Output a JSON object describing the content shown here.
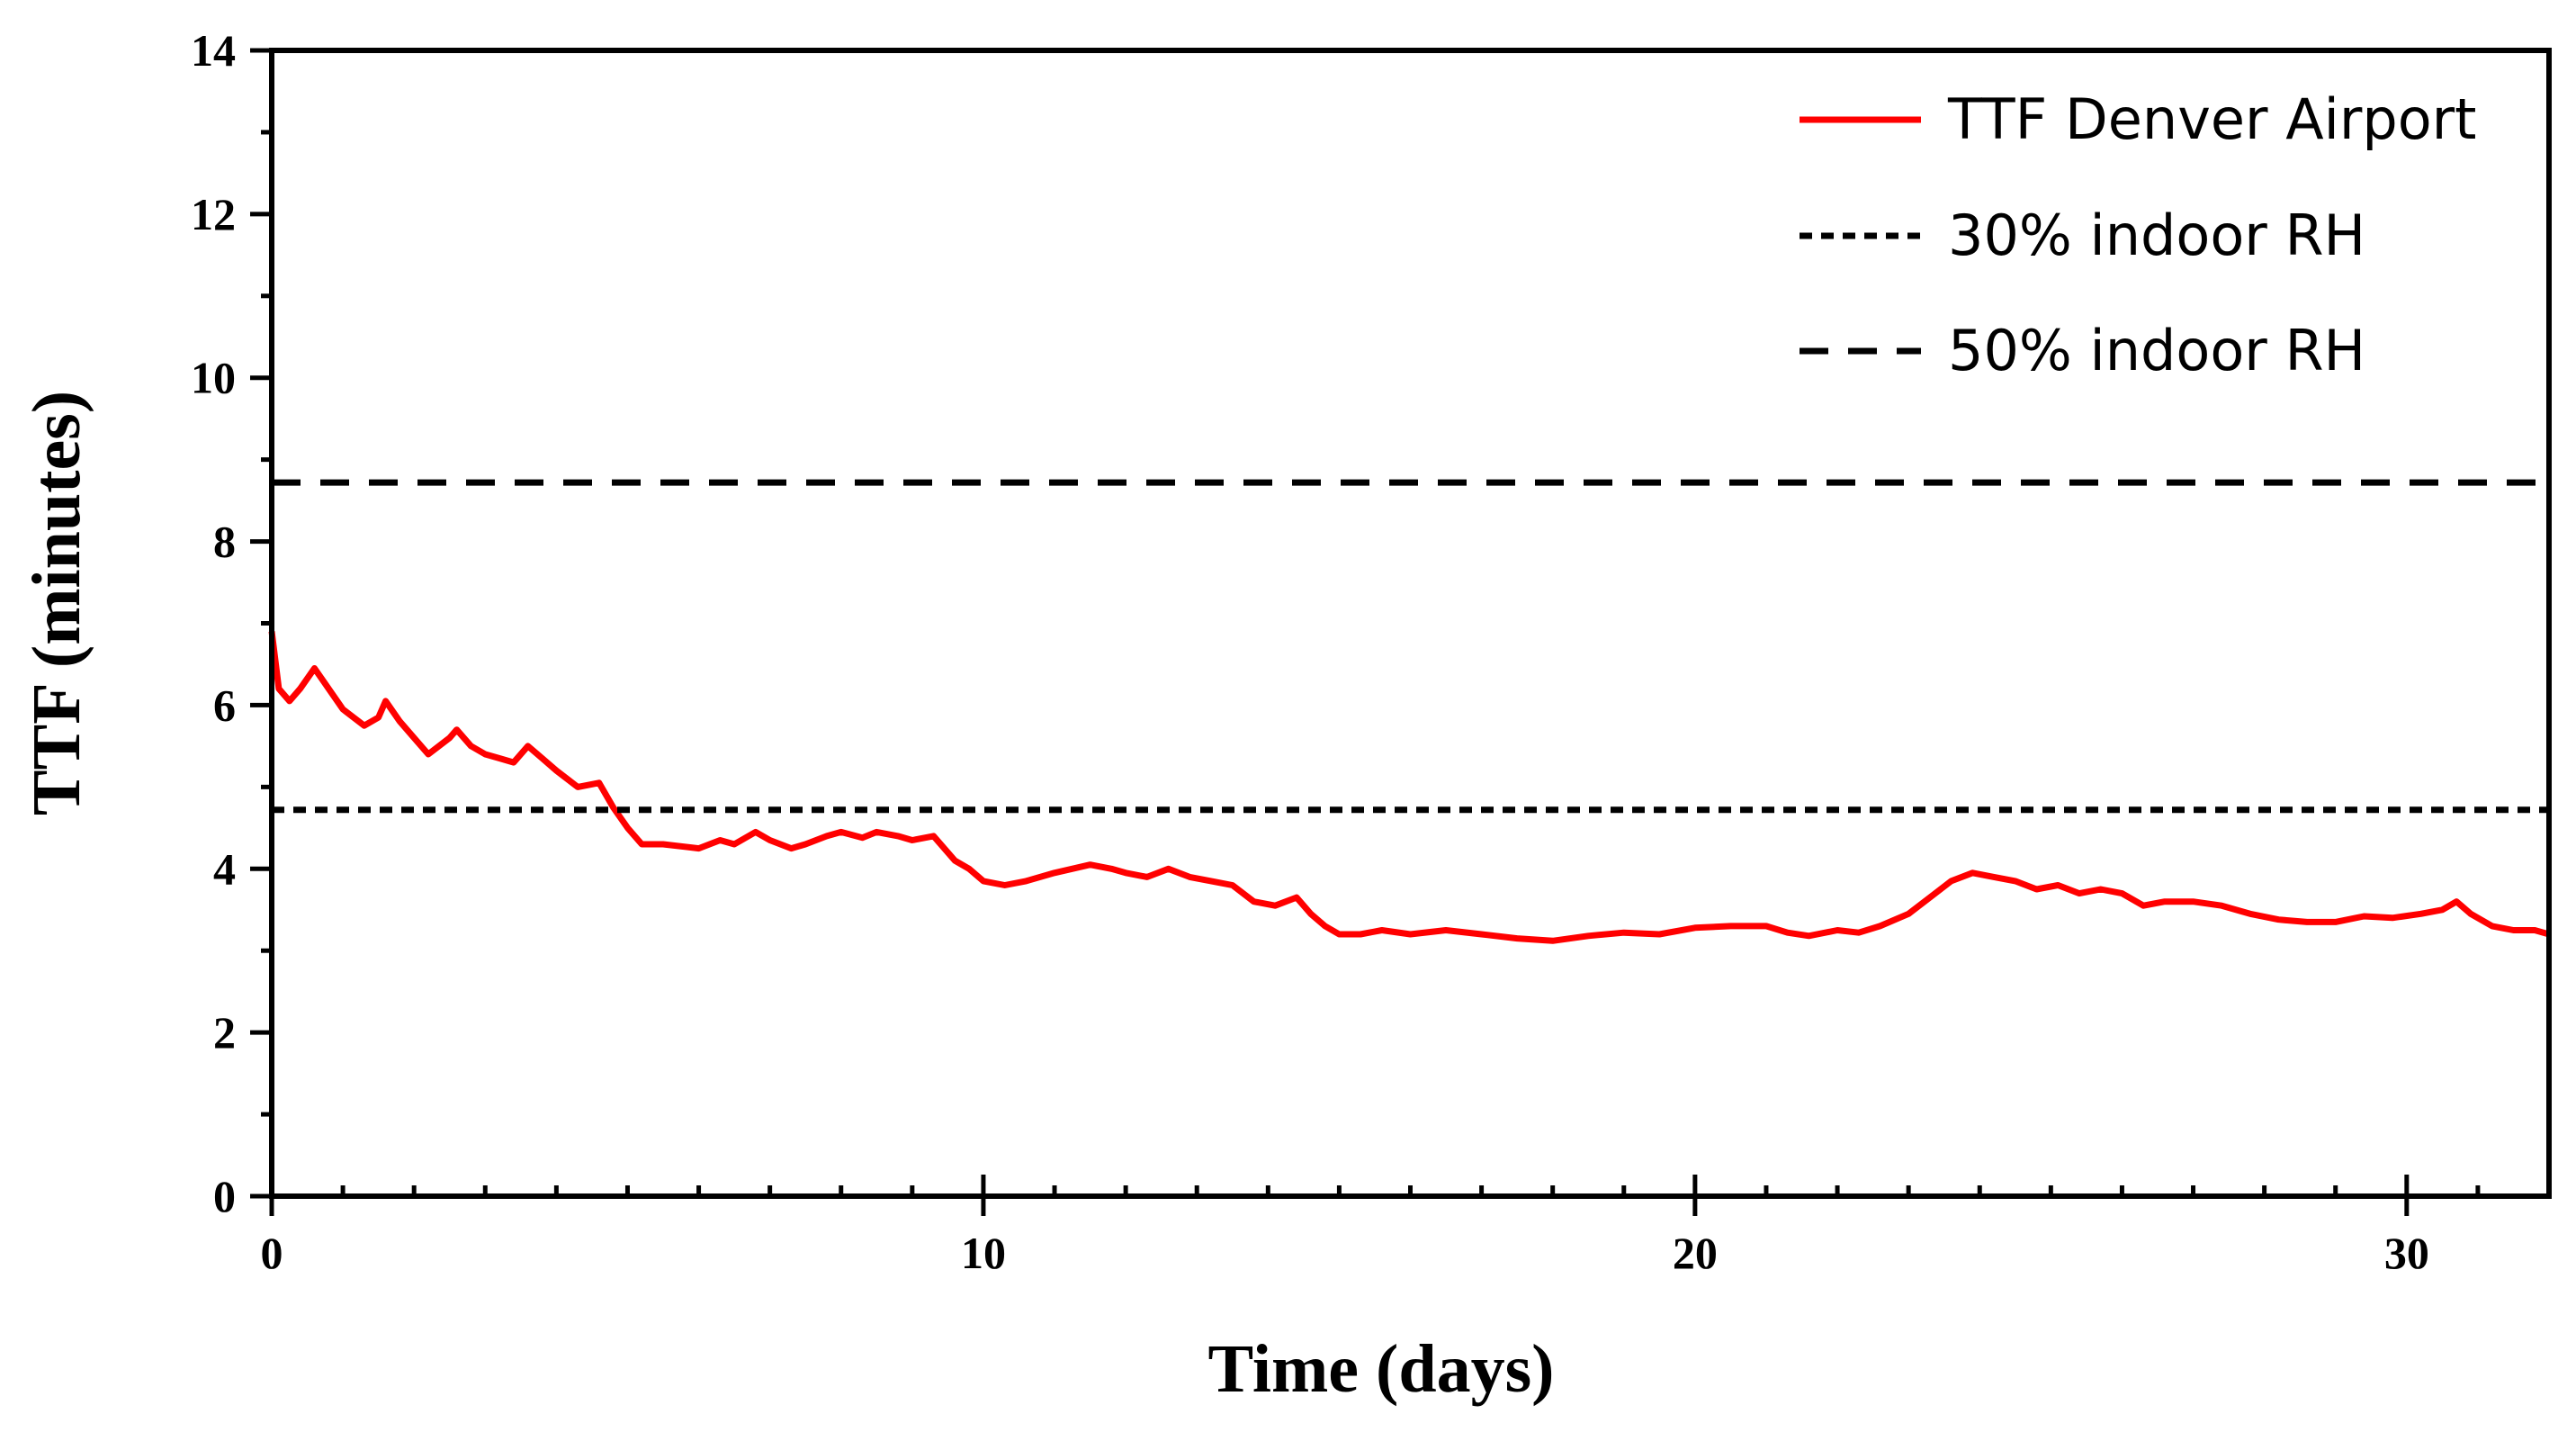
{
  "chart_data": {
    "type": "line",
    "xlabel": "Time (days)",
    "ylabel": "TTF (minutes)",
    "xlim": [
      0,
      32
    ],
    "ylim": [
      0,
      14
    ],
    "x_ticks": [
      0,
      10,
      20,
      30
    ],
    "y_ticks": [
      0,
      2,
      4,
      6,
      8,
      10,
      12,
      14
    ],
    "x_minor_step": 1,
    "y_minor_step": 1,
    "legend_position": "top-right",
    "series": [
      {
        "name": "TTF Denver Airport",
        "style": "solid",
        "color": "#ff0000",
        "x": [
          0,
          0.1,
          0.25,
          0.4,
          0.6,
          0.8,
          1.0,
          1.3,
          1.5,
          1.6,
          1.8,
          2.0,
          2.2,
          2.5,
          2.6,
          2.8,
          3.0,
          3.2,
          3.4,
          3.6,
          3.8,
          4.0,
          4.3,
          4.6,
          4.8,
          5.0,
          5.2,
          5.5,
          6.0,
          6.3,
          6.5,
          6.8,
          7.0,
          7.3,
          7.5,
          7.8,
          8.0,
          8.3,
          8.5,
          8.8,
          9.0,
          9.3,
          9.6,
          9.8,
          10.0,
          10.3,
          10.6,
          11.0,
          11.5,
          11.8,
          12.0,
          12.3,
          12.6,
          12.9,
          13.2,
          13.5,
          13.8,
          14.1,
          14.4,
          14.6,
          14.8,
          15.0,
          15.3,
          15.6,
          16.0,
          16.5,
          17.0,
          17.5,
          18.0,
          18.5,
          19.0,
          19.5,
          20.0,
          20.5,
          21.0,
          21.3,
          21.6,
          22.0,
          22.3,
          22.6,
          23.0,
          23.3,
          23.6,
          23.9,
          24.2,
          24.5,
          24.8,
          25.1,
          25.4,
          25.7,
          26.0,
          26.3,
          26.6,
          27.0,
          27.4,
          27.8,
          28.2,
          28.6,
          29.0,
          29.4,
          29.8,
          30.2,
          30.5,
          30.7,
          30.9,
          31.2,
          31.5,
          31.8,
          32.0
        ],
        "y": [
          6.9,
          6.2,
          6.05,
          6.2,
          6.45,
          6.2,
          5.95,
          5.75,
          5.85,
          6.05,
          5.8,
          5.6,
          5.4,
          5.6,
          5.7,
          5.5,
          5.4,
          5.35,
          5.3,
          5.5,
          5.35,
          5.2,
          5.0,
          5.05,
          4.75,
          4.5,
          4.3,
          4.3,
          4.25,
          4.35,
          4.3,
          4.45,
          4.35,
          4.25,
          4.3,
          4.4,
          4.45,
          4.38,
          4.45,
          4.4,
          4.35,
          4.4,
          4.1,
          4.0,
          3.85,
          3.8,
          3.85,
          3.95,
          4.05,
          4.0,
          3.95,
          3.9,
          4.0,
          3.9,
          3.85,
          3.8,
          3.6,
          3.55,
          3.65,
          3.45,
          3.3,
          3.2,
          3.2,
          3.25,
          3.2,
          3.25,
          3.2,
          3.15,
          3.12,
          3.18,
          3.22,
          3.2,
          3.28,
          3.3,
          3.3,
          3.22,
          3.18,
          3.25,
          3.22,
          3.3,
          3.45,
          3.65,
          3.85,
          3.95,
          3.9,
          3.85,
          3.75,
          3.8,
          3.7,
          3.75,
          3.7,
          3.55,
          3.6,
          3.6,
          3.55,
          3.45,
          3.38,
          3.35,
          3.35,
          3.42,
          3.4,
          3.45,
          3.5,
          3.6,
          3.45,
          3.3,
          3.25,
          3.25,
          3.2
        ]
      },
      {
        "name": "30% indoor RH",
        "style": "dotted",
        "color": "#000000",
        "x": [
          0,
          32
        ],
        "y": [
          4.72,
          4.72
        ]
      },
      {
        "name": "50% indoor RH",
        "style": "dashed",
        "color": "#000000",
        "x": [
          0,
          32
        ],
        "y": [
          8.72,
          8.72
        ]
      }
    ]
  }
}
